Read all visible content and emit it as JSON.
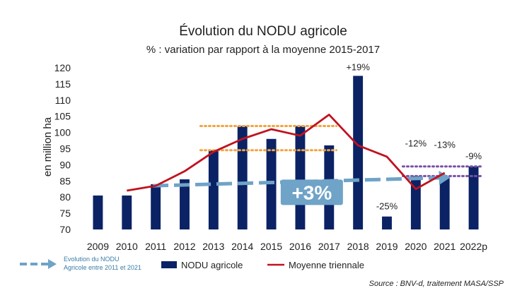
{
  "chart_data": {
    "type": "bar",
    "title": "Évolution du NODU agricole",
    "subtitle": "% : variation par rapport à la moyenne 2015-2017",
    "ylabel": "en million ha",
    "xlabel": "",
    "ylim": [
      70,
      120
    ],
    "yticks": [
      70,
      75,
      80,
      85,
      90,
      95,
      100,
      105,
      110,
      115,
      120
    ],
    "categories": [
      "2009",
      "2010",
      "2011",
      "2012",
      "2013",
      "2014",
      "2015",
      "2016",
      "2017",
      "2018",
      "2019",
      "2020",
      "2021",
      "2022p"
    ],
    "series": [
      {
        "name": "NODU agricole",
        "type": "bar",
        "color": "#0b2265",
        "values": [
          80.5,
          80.5,
          84,
          85.5,
          94.5,
          102,
          98,
          102,
          96,
          117.5,
          74,
          86.5,
          86,
          89.5
        ]
      },
      {
        "name": "Moyenne triennale",
        "type": "line",
        "color": "#c1121f",
        "values": [
          null,
          82,
          83.5,
          88,
          94,
          98,
          101,
          99,
          105.5,
          96,
          92.5,
          82.5,
          87.5,
          null
        ]
      }
    ],
    "reference_lines": [
      {
        "style": "dotted",
        "color": "#f4a340",
        "from": "2013",
        "to": "2017",
        "value": 102
      },
      {
        "style": "dotted",
        "color": "#f4a340",
        "from": "2013",
        "to": "2017",
        "value": 94.5
      },
      {
        "style": "dotted",
        "color": "#7b4fa8",
        "from": "2020",
        "to": "2022p",
        "value": 89.5
      },
      {
        "style": "dotted",
        "color": "#7b4fa8",
        "from": "2020",
        "to": "2022p",
        "value": 86.5
      }
    ],
    "trend_arrow": {
      "label": "+3%",
      "color": "#6fa3c7",
      "from": {
        "x": "2011",
        "y": 83.5
      },
      "to": {
        "x": "2021",
        "y": 86
      }
    },
    "annotations": [
      {
        "x": "2018",
        "y": 117.5,
        "text": "+19%"
      },
      {
        "x": "2019",
        "y": 74,
        "text": "-25%"
      },
      {
        "x": "2020",
        "y": 86.5,
        "text": "-12%"
      },
      {
        "x": "2021",
        "y": 86,
        "text": "-13%"
      },
      {
        "x": "2022p",
        "y": 89.5,
        "text": "-9%"
      }
    ],
    "legend": {
      "placement": "bottom",
      "items": [
        {
          "label": "Evolution du NODU Agricole entre 2011 et 2021",
          "kind": "arrow",
          "color": "#6fa3c7"
        },
        {
          "label": "NODU agricole",
          "kind": "bar",
          "color": "#0b2265"
        },
        {
          "label": "Moyenne triennale",
          "kind": "line",
          "color": "#c1121f"
        }
      ]
    },
    "grid": false
  },
  "legend_arrow_lines": [
    "Evolution du NODU",
    "Agricole entre 2011 et 2021"
  ],
  "source": "Source : BNV-d, traitement MASA/SSP"
}
